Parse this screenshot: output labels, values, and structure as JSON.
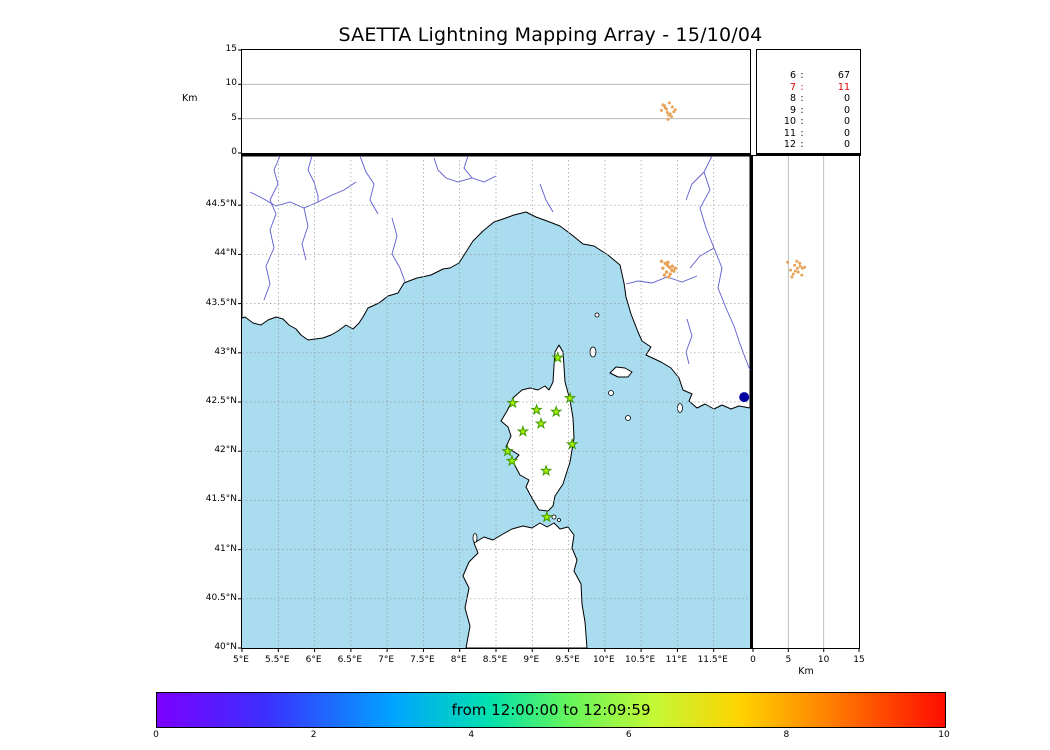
{
  "title": "SAETTA Lightning Mapping Array - 15/10/04",
  "axes": {
    "alt_ylabel": "Km",
    "alt_yticks": [
      15,
      10,
      5,
      0
    ],
    "alt_xticks": [
      0,
      5,
      10,
      15
    ],
    "alt_xlabel": "Km",
    "lat_ticks": [
      {
        "v": 44.5,
        "label": "44.5°N"
      },
      {
        "v": 44.0,
        "label": "44°N"
      },
      {
        "v": 43.5,
        "label": "43.5°N"
      },
      {
        "v": 43.0,
        "label": "43°N"
      },
      {
        "v": 42.5,
        "label": "42.5°N"
      },
      {
        "v": 42.0,
        "label": "42°N"
      },
      {
        "v": 41.5,
        "label": "41.5°N"
      },
      {
        "v": 41.0,
        "label": "41°N"
      },
      {
        "v": 40.5,
        "label": "40.5°N"
      },
      {
        "v": 40.0,
        "label": "40°N"
      }
    ],
    "lon_ticks": [
      {
        "v": 5.0,
        "label": "5°E"
      },
      {
        "v": 5.5,
        "label": "5.5°E"
      },
      {
        "v": 6.0,
        "label": "6°E"
      },
      {
        "v": 6.5,
        "label": "6.5°E"
      },
      {
        "v": 7.0,
        "label": "7°E"
      },
      {
        "v": 7.5,
        "label": "7.5°E"
      },
      {
        "v": 8.0,
        "label": "8°E"
      },
      {
        "v": 8.5,
        "label": "8.5°E"
      },
      {
        "v": 9.0,
        "label": "9°E"
      },
      {
        "v": 9.5,
        "label": "9.5°E"
      },
      {
        "v": 10.0,
        "label": "10°E"
      },
      {
        "v": 10.5,
        "label": "10.5°E"
      },
      {
        "v": 11.0,
        "label": "11°E"
      },
      {
        "v": 11.5,
        "label": "11.5°E"
      }
    ]
  },
  "colorbar": {
    "label": "from 12:00:00 to 12:09:59",
    "ticks": [
      0,
      2,
      4,
      6,
      8,
      10
    ],
    "range": [
      0,
      10
    ]
  },
  "colors": {
    "sea": "#a8dcee",
    "land": "#ffffff",
    "coast": "#000000",
    "grid": "#999999",
    "grid_solid": "#b0b0b0",
    "river": "#5b5bd0",
    "station_fill": "#aaee00",
    "station_edge": "#3c9a00",
    "source": "#e8a35a",
    "city": "#0000a0",
    "highlight": "#e00000"
  },
  "chart_data": {
    "type": "scatter",
    "title": "SAETTA Lightning Mapping Array - 15/10/04",
    "date": "15/10/04",
    "time_window": {
      "from": "12:00:00",
      "to": "12:09:59"
    },
    "map": {
      "lon_range": [
        5,
        12
      ],
      "lat_range": [
        40,
        45
      ],
      "grid_step_deg": 0.5
    },
    "alt_axis": {
      "label": "Km",
      "range_km": [
        0,
        15
      ],
      "gridlines_km": [
        5,
        10
      ]
    },
    "colorbar_axis": {
      "min": 0,
      "max": 10,
      "units": "minutes"
    },
    "minute_counts": [
      {
        "minute": 6,
        "count": 67
      },
      {
        "minute": 7,
        "count": 11
      },
      {
        "minute": 8,
        "count": 0
      },
      {
        "minute": 9,
        "count": 0
      },
      {
        "minute": 10,
        "count": 0
      },
      {
        "minute": 11,
        "count": 0
      },
      {
        "minute": 12,
        "count": 0
      }
    ],
    "highlight_minute": 7,
    "stations": [
      {
        "lon": 9.35,
        "lat": 42.95
      },
      {
        "lon": 8.73,
        "lat": 42.49
      },
      {
        "lon": 9.06,
        "lat": 42.42
      },
      {
        "lon": 9.33,
        "lat": 42.4
      },
      {
        "lon": 9.52,
        "lat": 42.54
      },
      {
        "lon": 8.87,
        "lat": 42.2
      },
      {
        "lon": 9.12,
        "lat": 42.28
      },
      {
        "lon": 8.66,
        "lat": 42.0
      },
      {
        "lon": 8.72,
        "lat": 41.9
      },
      {
        "lon": 9.55,
        "lat": 42.07
      },
      {
        "lon": 9.19,
        "lat": 41.8
      },
      {
        "lon": 9.2,
        "lat": 41.33
      }
    ],
    "lightning_sources": [
      {
        "lon": 10.78,
        "lat": 43.93,
        "alt_km": 6.2
      },
      {
        "lon": 10.83,
        "lat": 43.91,
        "alt_km": 6.6
      },
      {
        "lon": 10.86,
        "lat": 43.89,
        "alt_km": 5.9
      },
      {
        "lon": 10.8,
        "lat": 43.86,
        "alt_km": 7.0
      },
      {
        "lon": 10.89,
        "lat": 43.87,
        "alt_km": 7.3
      },
      {
        "lon": 10.92,
        "lat": 43.84,
        "alt_km": 5.3
      },
      {
        "lon": 10.85,
        "lat": 43.82,
        "alt_km": 6.4
      },
      {
        "lon": 10.9,
        "lat": 43.8,
        "alt_km": 5.7
      },
      {
        "lon": 10.95,
        "lat": 43.83,
        "alt_km": 6.0
      },
      {
        "lon": 10.82,
        "lat": 43.79,
        "alt_km": 6.9
      },
      {
        "lon": 10.88,
        "lat": 43.77,
        "alt_km": 5.5
      },
      {
        "lon": 10.93,
        "lat": 43.88,
        "alt_km": 6.7
      },
      {
        "lon": 10.87,
        "lat": 43.92,
        "alt_km": 4.9
      },
      {
        "lon": 10.97,
        "lat": 43.86,
        "alt_km": 6.3
      }
    ],
    "city_marker": {
      "lon": 11.92,
      "lat": 42.55
    }
  }
}
